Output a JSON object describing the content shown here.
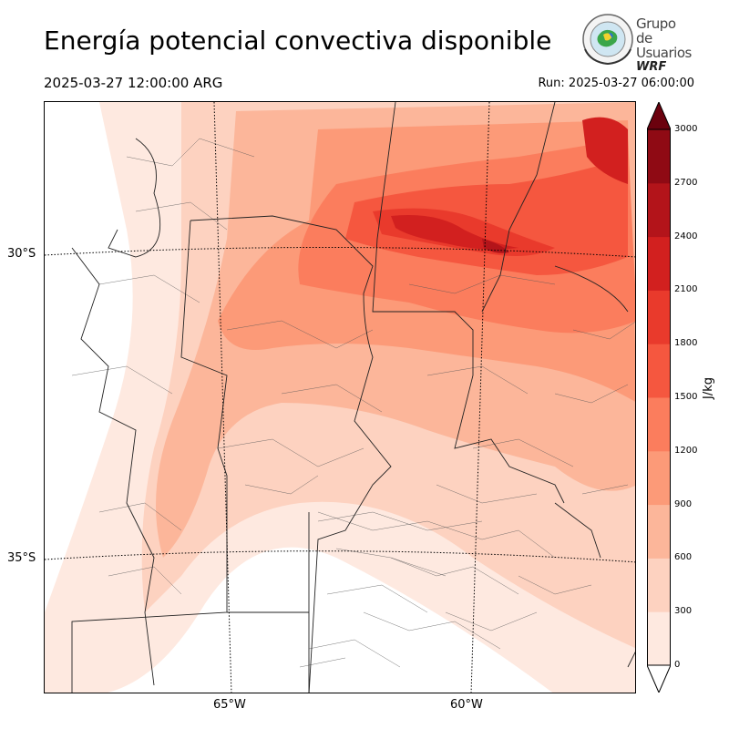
{
  "header": {
    "title": "Energía potencial convectiva disponible",
    "valid_time": "2025-03-27 12:00:00 ARG",
    "run_time": "Run: 2025-03-27 06:00:00"
  },
  "logo": {
    "line1": "Grupo de",
    "line2": "Usuarios",
    "line3": "WRF"
  },
  "map": {
    "lat_labels": [
      "30°S",
      "35°S"
    ],
    "lon_labels": [
      "65°W",
      "60°W"
    ]
  },
  "colorbar": {
    "unit": "J/kg",
    "ticks": [
      "0",
      "300",
      "600",
      "900",
      "1200",
      "1500",
      "1800",
      "2100",
      "2400",
      "2700",
      "3000"
    ],
    "colors": [
      "#fee9e0",
      "#fdd2c0",
      "#fcb69a",
      "#fc9a78",
      "#fb7d5d",
      "#f5573f",
      "#e93a2c",
      "#d2201f",
      "#b3141a",
      "#8f0a14",
      "#6b010e"
    ],
    "extend": "both"
  }
}
